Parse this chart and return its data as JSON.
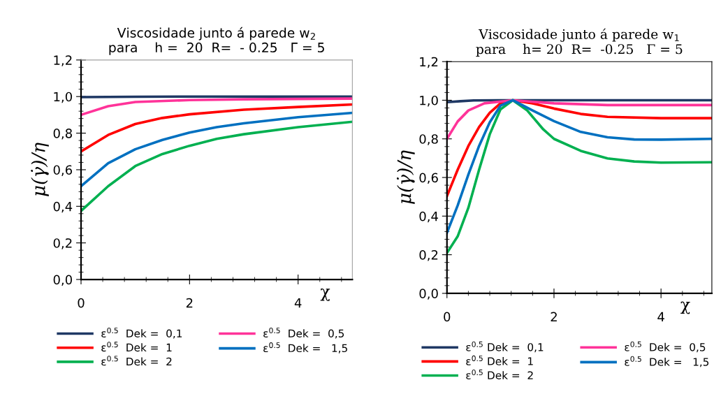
{
  "chart_data": [
    {
      "type": "line",
      "title": "Viscosidade junto á parede w$_{2}$\npara    h =  20  R=  - 0.25   Γ = 5",
      "xlabel": "χ",
      "ylabel": "μ(γ̇)/η",
      "xlim": [
        0,
        5
      ],
      "ylim": [
        0,
        1.2
      ],
      "xticks": [
        0,
        2,
        4
      ],
      "yticks": [
        {
          "value": 0,
          "label": "0,0"
        },
        {
          "value": 0.2,
          "label": "0,2"
        },
        {
          "value": 0.4,
          "label": "0,4"
        },
        {
          "value": 0.6,
          "label": "0,6"
        },
        {
          "value": 0.8,
          "label": "0,8"
        },
        {
          "value": 1.0,
          "label": "1,0"
        },
        {
          "value": 1.2,
          "label": "1,2"
        }
      ],
      "grid": false,
      "legend": "bottom",
      "marker": "none",
      "line_style": "solid",
      "series": [
        {
          "name": "ε$^{0.5}$  Dek =  0,1",
          "color": "#1f3864",
          "x": [
            0,
            1,
            2,
            3,
            4,
            5
          ],
          "values": [
            0.997,
            0.999,
            1.0,
            1.0,
            1.0,
            1.0
          ]
        },
        {
          "name": "ε$^{0.5}$  Dek =  1",
          "color": "#ff0000",
          "x": [
            0,
            0.5,
            1,
            1.5,
            2,
            3,
            4,
            5
          ],
          "values": [
            0.7,
            0.79,
            0.85,
            0.883,
            0.903,
            0.928,
            0.943,
            0.957
          ]
        },
        {
          "name": "ε$^{0.5}$  Dek =  2",
          "color": "#00b050",
          "x": [
            0,
            0.5,
            1,
            1.5,
            2,
            2.5,
            3,
            4,
            5
          ],
          "values": [
            0.375,
            0.51,
            0.62,
            0.686,
            0.731,
            0.769,
            0.794,
            0.833,
            0.862
          ]
        },
        {
          "name": "ε$^{0.5}$  Dek =  0,5",
          "color": "#ff3399",
          "x": [
            0,
            0.5,
            1,
            2,
            3,
            5
          ],
          "values": [
            0.9,
            0.947,
            0.97,
            0.981,
            0.985,
            0.989
          ]
        },
        {
          "name": "ε$^{0.5}$  Dek =   1,5",
          "color": "#0070c0",
          "x": [
            0,
            0.5,
            1,
            1.5,
            2,
            2.5,
            3,
            4,
            5
          ],
          "values": [
            0.51,
            0.636,
            0.712,
            0.763,
            0.803,
            0.833,
            0.854,
            0.887,
            0.911
          ]
        }
      ]
    },
    {
      "type": "line",
      "title": "Viscosidade junto á parede w$_{1}$\npara    h= 20  R=  -0.25   Γ = 5",
      "xlabel": "χ",
      "ylabel": "μ(γ̇)/η",
      "xlim": [
        0,
        4.95
      ],
      "ylim": [
        0,
        1.2
      ],
      "xticks": [
        0,
        2,
        4
      ],
      "yticks": [
        {
          "value": 0,
          "label": "0,0"
        },
        {
          "value": 0.2,
          "label": "0,2"
        },
        {
          "value": 0.4,
          "label": "0,4"
        },
        {
          "value": 0.6,
          "label": "0,6"
        },
        {
          "value": 0.8,
          "label": "0,8"
        },
        {
          "value": 1.0,
          "label": "1,0"
        },
        {
          "value": 1.2,
          "label": "1,2"
        }
      ],
      "grid": false,
      "legend": "bottom",
      "marker": "none",
      "line_style": "solid",
      "series": [
        {
          "name": "ε$^{0.5}$ Dek =  0,1",
          "color": "#1f3864",
          "x": [
            0,
            0.25,
            0.5,
            1,
            1.23,
            2,
            3,
            4,
            4.95
          ],
          "values": [
            0.99,
            0.995,
            0.999,
            1.0,
            1.0,
            1.0,
            1.0,
            1.0,
            1.0
          ]
        },
        {
          "name": "ε$^{0.5}$ Dek =  1",
          "color": "#ff0000",
          "x": [
            0,
            0.2,
            0.4,
            0.6,
            0.8,
            1.0,
            1.23,
            1.6,
            2,
            2.5,
            3,
            4,
            4.95
          ],
          "values": [
            0.504,
            0.64,
            0.763,
            0.861,
            0.935,
            0.984,
            1.0,
            0.984,
            0.957,
            0.929,
            0.914,
            0.907,
            0.907
          ]
        },
        {
          "name": "ε$^{0.5}$ Dek =  2",
          "color": "#00b050",
          "x": [
            0,
            0.2,
            0.4,
            0.6,
            0.8,
            1.0,
            1.23,
            1.5,
            1.8,
            2,
            2.5,
            3,
            3.5,
            4,
            4.95
          ],
          "values": [
            0.209,
            0.295,
            0.443,
            0.64,
            0.824,
            0.953,
            1.0,
            0.947,
            0.849,
            0.8,
            0.738,
            0.699,
            0.683,
            0.677,
            0.679
          ]
        },
        {
          "name": "ε$^{0.5}$  Dek =  0,5",
          "color": "#ff3399",
          "x": [
            0,
            0.2,
            0.4,
            0.7,
            1.23,
            2,
            3,
            4,
            4.95
          ],
          "values": [
            0.8,
            0.89,
            0.947,
            0.984,
            1.0,
            0.984,
            0.975,
            0.975,
            0.975
          ]
        },
        {
          "name": "ε$^{0.5}$  Dek =   1,5",
          "color": "#0070c0",
          "x": [
            0,
            0.2,
            0.4,
            0.6,
            0.8,
            1.0,
            1.23,
            1.6,
            2,
            2.5,
            3,
            3.5,
            4,
            4.95
          ],
          "values": [
            0.314,
            0.455,
            0.615,
            0.763,
            0.886,
            0.972,
            1.0,
            0.947,
            0.892,
            0.836,
            0.808,
            0.797,
            0.796,
            0.8
          ]
        }
      ]
    }
  ]
}
